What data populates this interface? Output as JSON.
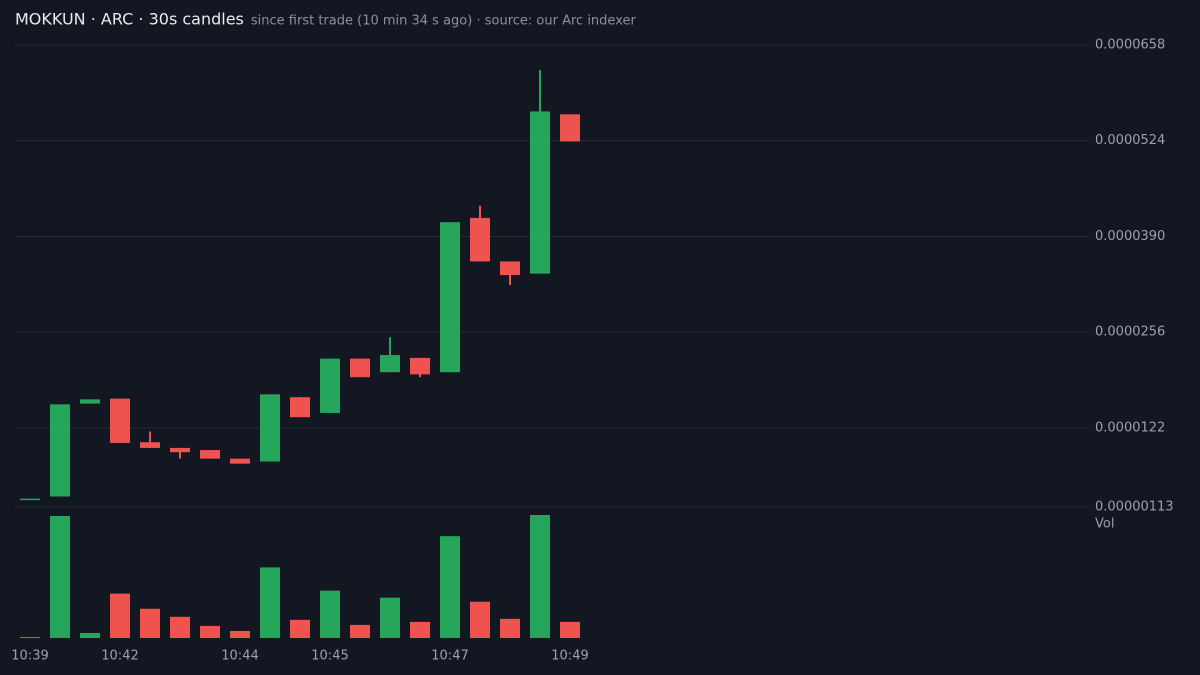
{
  "chart_data": {
    "type": "candlestick",
    "title": "MOKKUN · ARC · 30s candles",
    "subtitle": "since first trade (10 min 34 s ago) · source: our Arc indexer",
    "volume_label": "Vol",
    "categories": [
      "10:39",
      null,
      null,
      "10:42",
      null,
      null,
      null,
      "10:44",
      null,
      null,
      "10:45",
      null,
      null,
      null,
      "10:47",
      null,
      null,
      null,
      "10:49"
    ],
    "open": [
      2.2e-06,
      2.6e-06,
      1.56e-05,
      1.63e-05,
      1.02e-05,
      9.4e-06,
      9.1e-06,
      7.9e-06,
      7.5e-06,
      1.65e-05,
      1.43e-05,
      2.19e-05,
      2e-05,
      2.2e-05,
      2e-05,
      4.16e-05,
      3.55e-05,
      3.38e-05,
      5.61e-05
    ],
    "high": [
      2.3e-06,
      1.55e-05,
      1.62e-05,
      1.63e-05,
      1.17e-05,
      9.4e-06,
      9.1e-06,
      7.9e-06,
      1.69e-05,
      1.65e-05,
      2.19e-05,
      2.19e-05,
      2.49e-05,
      2.2e-05,
      4.1e-05,
      4.33e-05,
      3.55e-05,
      6.23e-05,
      5.61e-05
    ],
    "low": [
      2.2e-06,
      2.6e-06,
      1.56e-05,
      1.01e-05,
      9.4e-06,
      7.9e-06,
      7.9e-06,
      7.2e-06,
      7.5e-06,
      1.37e-05,
      1.43e-05,
      1.93e-05,
      2e-05,
      1.93e-05,
      2e-05,
      3.55e-05,
      3.22e-05,
      3.38e-05,
      5.23e-05
    ],
    "close": [
      2.3e-06,
      1.55e-05,
      1.62e-05,
      1.01e-05,
      9.4e-06,
      8.8e-06,
      7.9e-06,
      7.2e-06,
      1.69e-05,
      1.37e-05,
      2.19e-05,
      1.93e-05,
      2.24e-05,
      1.97e-05,
      4.1e-05,
      3.55e-05,
      3.36e-05,
      5.65e-05,
      5.23e-05
    ],
    "volume": [
      1,
      121,
      5,
      44,
      29,
      21,
      12,
      7,
      70,
      18,
      47,
      13,
      40,
      16,
      101,
      36,
      19,
      122,
      16
    ],
    "up_color": "#26a65b",
    "down_color": "#ef5350",
    "ylim": [
      1.13e-06,
      6.58e-05
    ],
    "yticks": [
      6.58e-05,
      5.24e-05,
      {
        "value": 3.9e-05,
        "label": "0.0000390"
      },
      2.56e-05,
      1.22e-05,
      {
        "value": 1.13e-06,
        "label": "0.00000113"
      }
    ],
    "grid": true
  }
}
